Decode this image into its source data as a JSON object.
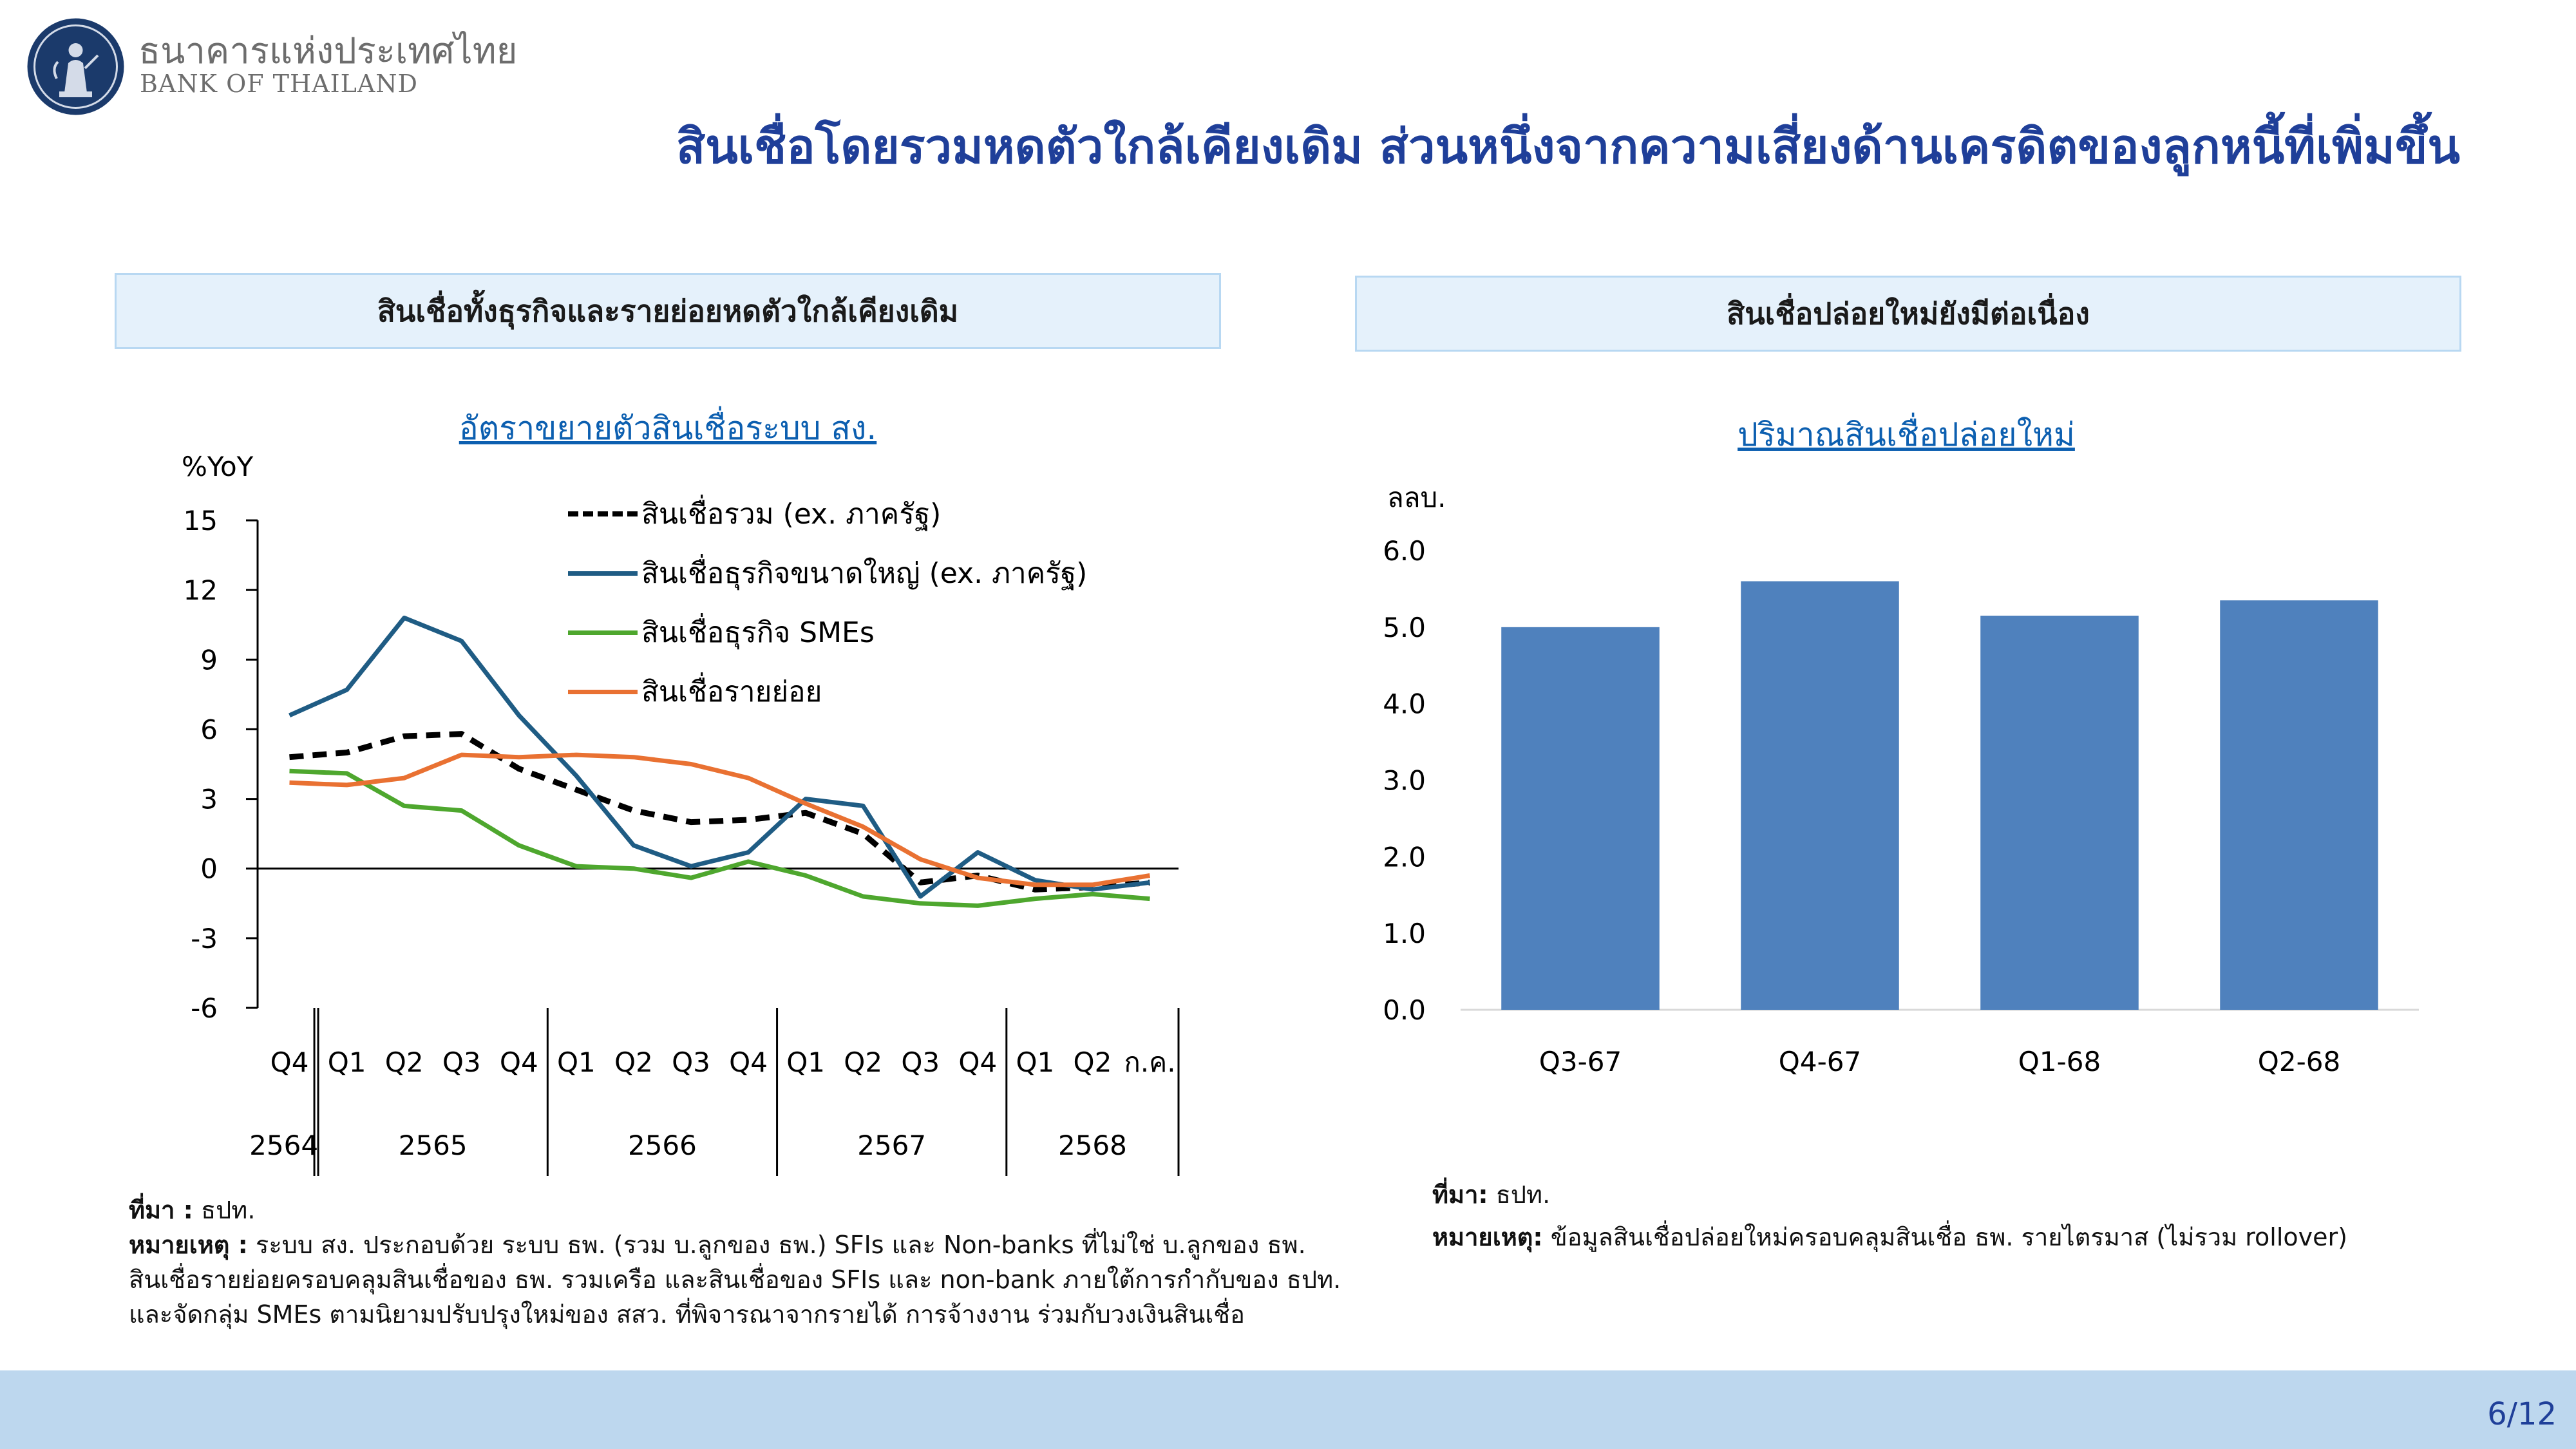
{
  "header": {
    "org_name_th": "ธนาคารแห่งประเทศไทย",
    "org_name_en": "BANK OF THAILAND",
    "title": "สินเชื่อโดยรวมหดตัวใกล้เคียงเดิม ส่วนหนึ่งจากความเสี่ยงด้านเครดิตของลูกหนี้ที่เพิ่มขึ้น"
  },
  "left_panel": {
    "section_title": "สินเชื่อทั้งธุรกิจและรายย่อยหดตัวใกล้เคียงเดิม",
    "chart_title": "อัตราขยายตัวสินเชื่อระบบ สง.",
    "y_unit": "%YoY",
    "source_label": "ที่มา :",
    "source_text": " ธปท.",
    "note_label": "หมายเหตุ :",
    "note_line1": " ระบบ สง. ประกอบด้วย ระบบ ธพ. (รวม บ.ลูกของ ธพ.) SFIs และ Non-banks ที่ไม่ใช่ บ.ลูกของ ธพ.",
    "note_line2": "สินเชื่อรายย่อยครอบคลุมสินเชื่อของ ธพ. รวมเครือ และสินเชื่อของ SFIs และ non-bank ภายใต้การกำกับของ ธปท.",
    "note_line3": "และจัดกลุ่ม SMEs ตามนิยามปรับปรุงใหม่ของ สสว. ที่พิจารณาจากรายได้ การจ้างงาน ร่วมกับวงเงินสินเชื่อ"
  },
  "right_panel": {
    "section_title": "สินเชื่อปล่อยใหม่ยังมีต่อเนื่อง",
    "chart_title": "ปริมาณสินเชื่อปล่อยใหม่",
    "y_unit": "ลลบ.",
    "source_label": "ที่มา:",
    "source_text": " ธปท.",
    "note_label": "หมายเหตุ:",
    "note_text": " ข้อมูลสินเชื่อปล่อยใหม่ครอบคลุมสินเชื่อ ธพ. รายไตรมาส (ไม่รวม rollover)"
  },
  "chart_data": [
    {
      "type": "line",
      "y_unit": "%YoY",
      "ylim": [
        -6,
        15
      ],
      "yticks": [
        "15",
        "12",
        "9",
        "6",
        "3",
        "0",
        "-3",
        "-6"
      ],
      "x": [
        "Q4",
        "Q1",
        "Q2",
        "Q3",
        "Q4",
        "Q1",
        "Q2",
        "Q3",
        "Q4",
        "Q1",
        "Q2",
        "Q3",
        "Q4",
        "Q1",
        "Q2",
        "ก.ค."
      ],
      "year_groups": [
        {
          "label": "2564",
          "span": 1
        },
        {
          "label": "2565",
          "span": 4
        },
        {
          "label": "2566",
          "span": 4
        },
        {
          "label": "2567",
          "span": 4
        },
        {
          "label": "2568",
          "span": 3
        }
      ],
      "series": [
        {
          "name": "สินเชื่อรวม (ex. ภาครัฐ)",
          "color": "#000000",
          "style": "dashed",
          "values": [
            4.8,
            5.0,
            5.7,
            5.8,
            4.3,
            3.4,
            2.5,
            2.0,
            2.1,
            2.4,
            1.5,
            -0.6,
            -0.3,
            -0.9,
            -0.8,
            -0.6
          ]
        },
        {
          "name": "สินเชื่อธุรกิจขนาดใหญ่ (ex. ภาครัฐ)",
          "color": "#1f5c84",
          "style": "solid",
          "values": [
            6.6,
            7.7,
            10.8,
            9.8,
            6.6,
            4.0,
            1.0,
            0.1,
            0.7,
            3.0,
            2.7,
            -1.2,
            0.7,
            -0.5,
            -0.9,
            -0.6
          ]
        },
        {
          "name": "สินเชื่อธุรกิจ SMEs",
          "color": "#4ea72e",
          "style": "solid",
          "values": [
            4.2,
            4.1,
            2.7,
            2.5,
            1.0,
            0.1,
            0.0,
            -0.4,
            0.3,
            -0.3,
            -1.2,
            -1.5,
            -1.6,
            -1.3,
            -1.1,
            -1.3
          ]
        },
        {
          "name": "สินเชื่อรายย่อย",
          "color": "#e97132",
          "style": "solid",
          "values": [
            3.7,
            3.6,
            3.9,
            4.9,
            4.8,
            4.9,
            4.8,
            4.5,
            3.9,
            2.8,
            1.8,
            0.4,
            -0.4,
            -0.7,
            -0.7,
            -0.3
          ]
        }
      ]
    },
    {
      "type": "bar",
      "y_unit": "ลลบ.",
      "ylim": [
        0,
        6
      ],
      "yticks": [
        "6.0",
        "5.0",
        "4.0",
        "3.0",
        "2.0",
        "1.0",
        "0.0"
      ],
      "categories": [
        "Q3-67",
        "Q4-67",
        "Q1-68",
        "Q2-68"
      ],
      "values": [
        5.0,
        5.6,
        5.15,
        5.35
      ],
      "color": "#4f81bd"
    }
  ],
  "footer": {
    "page_number": "6/12",
    "bg_color": "#bdd7ee"
  }
}
